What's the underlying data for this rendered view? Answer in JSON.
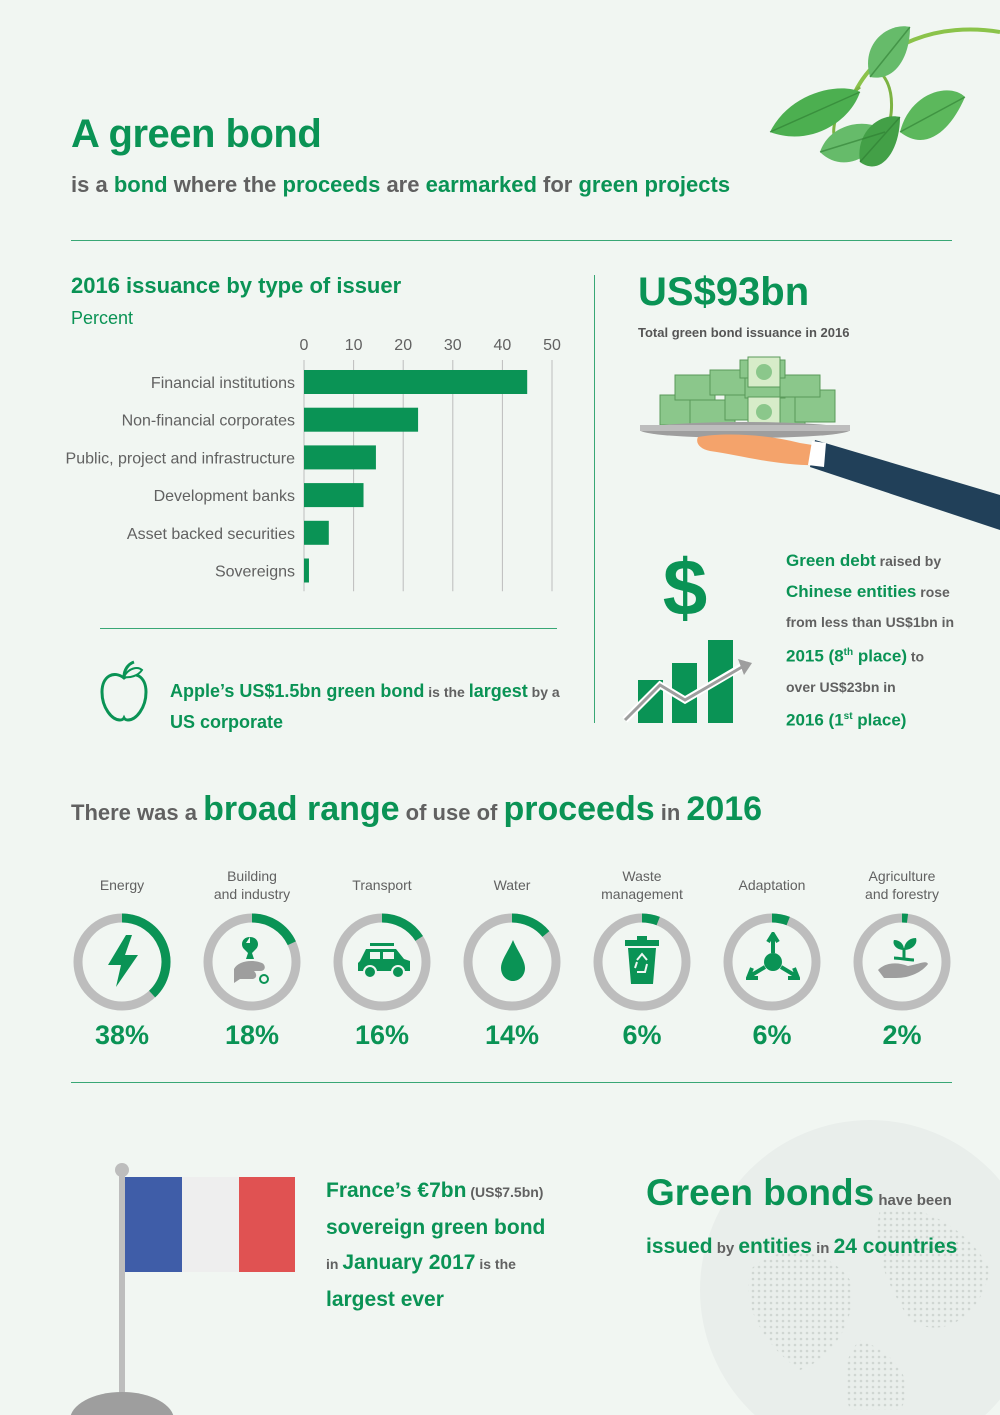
{
  "header": {
    "title": "A green bond",
    "subtitle_parts": [
      "is a ",
      "bond",
      " where the ",
      "proceeds",
      " are ",
      "earmarked",
      " for ",
      "green projects"
    ]
  },
  "chart_data": {
    "type": "bar",
    "orientation": "horizontal",
    "title": "2016 issuance by type of issuer",
    "subtitle": "Percent",
    "categories": [
      "Financial institutions",
      "Non-financial corporates",
      "Public, project and infrastructure",
      "Development banks",
      "Asset backed securities",
      "Sovereigns"
    ],
    "values": [
      45,
      23,
      14.5,
      12,
      5,
      1
    ],
    "xlim": [
      0,
      50
    ],
    "ticks": [
      "0",
      "10",
      "20",
      "30",
      "40",
      "50"
    ],
    "grid": true,
    "color": "#0a9355"
  },
  "total": {
    "value": "US$93bn",
    "label": "Total green bond issuance in 2016"
  },
  "apple": {
    "parts": [
      "Apple’s US$1.5bn green bond",
      " is the ",
      "largest",
      " by a",
      "US corporate"
    ]
  },
  "china": {
    "line1": [
      "Green debt",
      " raised by"
    ],
    "line2": [
      "Chinese entities",
      " rose"
    ],
    "line3": "from less than US$1bn in",
    "line4": [
      "2015 (8",
      "th",
      " place)",
      " to"
    ],
    "line5": "over US$23bn in",
    "line6": [
      "2016 (1",
      "st",
      " place)"
    ]
  },
  "use_heading": {
    "parts": [
      "There was a ",
      "broad range",
      " of use of ",
      "proceeds",
      " in ",
      "2016"
    ]
  },
  "uses": [
    {
      "label": "Energy",
      "pct": "38%",
      "value": 38,
      "icon": "lightning-icon"
    },
    {
      "label": "Building and industry",
      "line1": "Building",
      "line2": "and industry",
      "pct": "18%",
      "value": 18,
      "icon": "wrench-hand-icon"
    },
    {
      "label": "Transport",
      "pct": "16%",
      "value": 16,
      "icon": "car-icon"
    },
    {
      "label": "Water",
      "pct": "14%",
      "value": 14,
      "icon": "water-drop-icon"
    },
    {
      "label": "Waste management",
      "line1": "Waste",
      "line2": "management",
      "pct": "6%",
      "value": 6,
      "icon": "recycle-bin-icon"
    },
    {
      "label": "Adaptation",
      "pct": "6%",
      "value": 6,
      "icon": "adaptation-arrows-icon"
    },
    {
      "label": "Agriculture and forestry",
      "line1": "Agriculture",
      "line2": "and forestry",
      "pct": "2%",
      "value": 2,
      "icon": "seedling-hand-icon"
    }
  ],
  "france": {
    "line1": [
      "France’s €7bn",
      " (US$7.5bn)"
    ],
    "line2": "sovereign green bond",
    "line3": [
      "in ",
      "January 2017",
      " is the"
    ],
    "line4": "largest ever"
  },
  "countries": {
    "line1": [
      "Green bonds",
      " have been"
    ],
    "line2": [
      "issued",
      " by ",
      "entities",
      " in ",
      "24 countries"
    ]
  },
  "colors": {
    "accent": "#0a9355",
    "ring_grey": "#bdbdbd",
    "text_grey": "#616161"
  }
}
